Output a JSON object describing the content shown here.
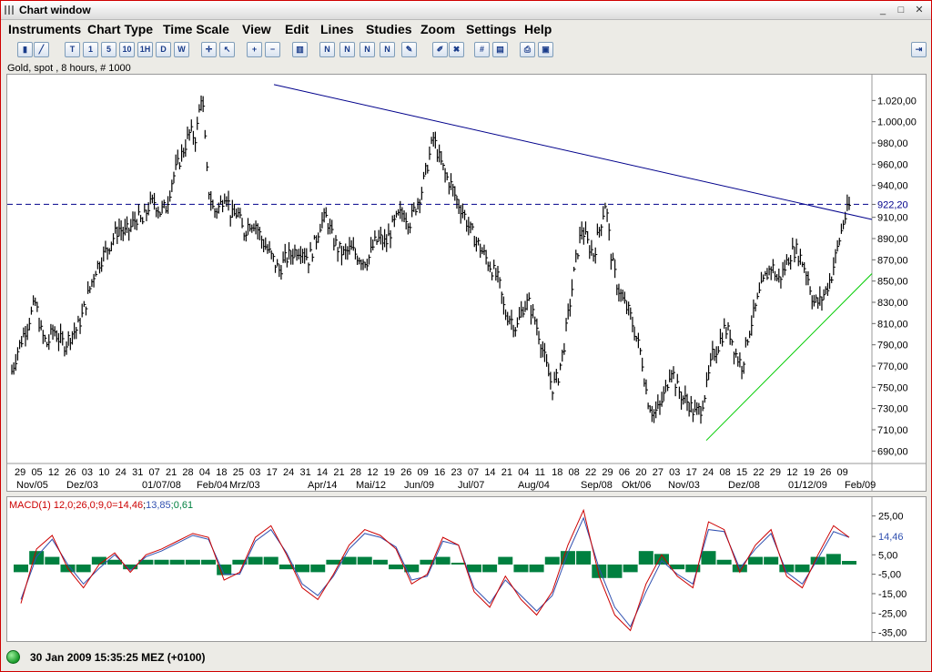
{
  "window": {
    "title": "Chart window",
    "controls": [
      "_",
      "□",
      "✕"
    ]
  },
  "menu": [
    "Instruments",
    "Chart Type",
    "Time Scale",
    "View",
    "Edit",
    "Lines",
    "Studies",
    "Zoom",
    "Settings",
    "Help"
  ],
  "toolbar": [
    {
      "name": "bar-chart-type-button",
      "glyph": "▮"
    },
    {
      "name": "line-type-button",
      "glyph": "╱"
    },
    {
      "name": "tick-timeframe-button",
      "glyph": "T"
    },
    {
      "name": "1min-timeframe-button",
      "glyph": "1"
    },
    {
      "name": "5min-timeframe-button",
      "glyph": "5"
    },
    {
      "name": "10min-timeframe-button",
      "glyph": "10"
    },
    {
      "name": "1hour-timeframe-button",
      "glyph": "1H"
    },
    {
      "name": "daily-timeframe-button",
      "glyph": "D"
    },
    {
      "name": "weekly-timeframe-button",
      "glyph": "W"
    },
    {
      "name": "crosshair-button",
      "glyph": "✛"
    },
    {
      "name": "cursor-button",
      "glyph": "↖"
    },
    {
      "name": "zoom-in-button",
      "glyph": "+"
    },
    {
      "name": "zoom-out-button",
      "glyph": "−"
    },
    {
      "name": "volume-button",
      "glyph": "▥"
    },
    {
      "name": "trendline-button",
      "glyph": "N"
    },
    {
      "name": "channel-button",
      "glyph": "N"
    },
    {
      "name": "fibonacci-button",
      "glyph": "N"
    },
    {
      "name": "parallel-button",
      "glyph": "N"
    },
    {
      "name": "drawing-tool-button",
      "glyph": "✎"
    },
    {
      "name": "eraser-button",
      "glyph": "✐"
    },
    {
      "name": "delete-drawings-button",
      "glyph": "✖"
    },
    {
      "name": "grid-button",
      "glyph": "#"
    },
    {
      "name": "table-button",
      "glyph": "▤"
    },
    {
      "name": "print-button",
      "glyph": "⎙"
    },
    {
      "name": "print-preview-button",
      "glyph": "▣"
    },
    {
      "name": "pin-button",
      "glyph": "⇥"
    }
  ],
  "instrument_label": "Gold, spot , 8 hours, # 1000",
  "status": {
    "text": "30 Jan 2009 15:35:25  MEZ (+0100)"
  },
  "colors": {
    "trend_down": "#00008b",
    "trend_up": "#00cc00",
    "last_price_line": "#00008b",
    "macd": "#cc0000",
    "signal": "#3050b0",
    "histogram": "#008040",
    "bars": "#000000"
  },
  "chart_data": [
    {
      "type": "bar",
      "title": "Gold, spot , 8 hours, # 1000",
      "ylim": [
        680,
        1040
      ],
      "yticks": [
        "1.020,00",
        "1.000,00",
        "980,00",
        "960,00",
        "940,00",
        "922,20",
        "910,00",
        "890,00",
        "870,00",
        "850,00",
        "830,00",
        "810,00",
        "790,00",
        "770,00",
        "750,00",
        "730,00",
        "710,00",
        "690,00"
      ],
      "last_price": 922.2,
      "last_price_label": "922,20",
      "x_day_labels": [
        "29",
        "05",
        "12",
        "26",
        "03",
        "10",
        "24",
        "31",
        "07",
        "21",
        "28",
        "04",
        "18",
        "25",
        "03",
        "17",
        "24",
        "31",
        "14",
        "21",
        "28",
        "12",
        "19",
        "26",
        "09",
        "16",
        "23",
        "07",
        "14",
        "21",
        "04",
        "11",
        "18",
        "08",
        "22",
        "29",
        "06",
        "20",
        "27",
        "03",
        "17",
        "24",
        "08",
        "15",
        "22",
        "29",
        "12",
        "19",
        "26",
        "09"
      ],
      "x_month_labels": [
        "Nov/05",
        "Dez/03",
        "01/07/08",
        "Feb/04",
        "Mrz/03",
        "Apr/14",
        "Mai/12",
        "Jun/09",
        "Jul/07",
        "Aug/04",
        "Sep/08",
        "Okt/06",
        "Nov/03",
        "Dez/08",
        "01/12/09",
        "Feb/09"
      ],
      "price_path": [
        765,
        785,
        800,
        815,
        830,
        800,
        790,
        805,
        795,
        790,
        800,
        805,
        820,
        840,
        860,
        870,
        880,
        890,
        900,
        895,
        900,
        910,
        905,
        920,
        925,
        915,
        920,
        945,
        960,
        975,
        990,
        985,
        1030,
        940,
        915,
        920,
        935,
        910,
        915,
        895,
        905,
        905,
        890,
        880,
        870,
        860,
        870,
        875,
        880,
        880,
        870,
        885,
        905,
        910,
        890,
        880,
        875,
        880,
        875,
        870,
        870,
        885,
        890,
        885,
        900,
        910,
        915,
        905,
        920,
        935,
        960,
        985,
        965,
        950,
        940,
        925,
        915,
        900,
        890,
        880,
        870,
        860,
        850,
        820,
        815,
        805,
        825,
        830,
        815,
        795,
        770,
        750,
        760,
        790,
        830,
        870,
        900,
        885,
        875,
        900,
        925,
        870,
        845,
        830,
        820,
        800,
        780,
        740,
        725,
        730,
        745,
        770,
        750,
        740,
        735,
        725,
        730,
        750,
        780,
        790,
        805,
        800,
        780,
        770,
        800,
        820,
        840,
        855,
        865,
        850,
        860,
        875,
        880,
        870,
        855,
        830,
        830,
        840,
        855,
        880,
        905,
        920
      ]
    },
    {
      "type": "line",
      "title": "MACD(1) 12,0;26,0;9,0=14,46;13,85;0,61",
      "title_parts": [
        "MACD(1) 12,0;26,0;9,0=",
        "14,46",
        ";",
        "13,85",
        ";0,61"
      ],
      "ylim": [
        -38,
        30
      ],
      "yticks": [
        "25,00",
        "14,46",
        "5,00",
        "-5,00",
        "-15,00",
        "-25,00",
        "-35,00"
      ],
      "series": [
        {
          "name": "MACD",
          "values": [
            -20,
            8,
            15,
            -2,
            -12,
            0,
            6,
            -4,
            5,
            8,
            12,
            16,
            14,
            -8,
            -4,
            14,
            20,
            5,
            -12,
            -18,
            -5,
            10,
            18,
            15,
            8,
            -10,
            -5,
            14,
            10,
            -14,
            -22,
            -6,
            -18,
            -26,
            -14,
            10,
            28,
            -6,
            -26,
            -34,
            -10,
            5,
            -6,
            -12,
            22,
            18,
            -4,
            10,
            18,
            -6,
            -12,
            5,
            20,
            14
          ]
        },
        {
          "name": "Signal",
          "values": [
            -18,
            4,
            13,
            0,
            -10,
            -2,
            5,
            -3,
            4,
            7,
            11,
            15,
            13,
            -5,
            -5,
            12,
            18,
            6,
            -10,
            -16,
            -6,
            8,
            16,
            14,
            9,
            -8,
            -6,
            12,
            10,
            -12,
            -20,
            -8,
            -16,
            -24,
            -16,
            6,
            24,
            -2,
            -22,
            -32,
            -14,
            2,
            -5,
            -10,
            18,
            17,
            -2,
            8,
            16,
            -4,
            -10,
            3,
            17,
            14
          ]
        },
        {
          "name": "Histogram",
          "values": [
            -2,
            4,
            2,
            -2,
            -2,
            2,
            1,
            -1,
            1,
            1,
            1,
            1,
            1,
            -3,
            1,
            2,
            2,
            -1,
            -2,
            -2,
            1,
            2,
            2,
            1,
            -1,
            -2,
            1,
            2,
            0,
            -2,
            -2,
            2,
            -2,
            -2,
            2,
            4,
            4,
            -4,
            -4,
            -2,
            4,
            3,
            -1,
            -2,
            4,
            1,
            -2,
            2,
            2,
            -2,
            -2,
            2,
            3,
            0.61
          ]
        }
      ]
    }
  ]
}
